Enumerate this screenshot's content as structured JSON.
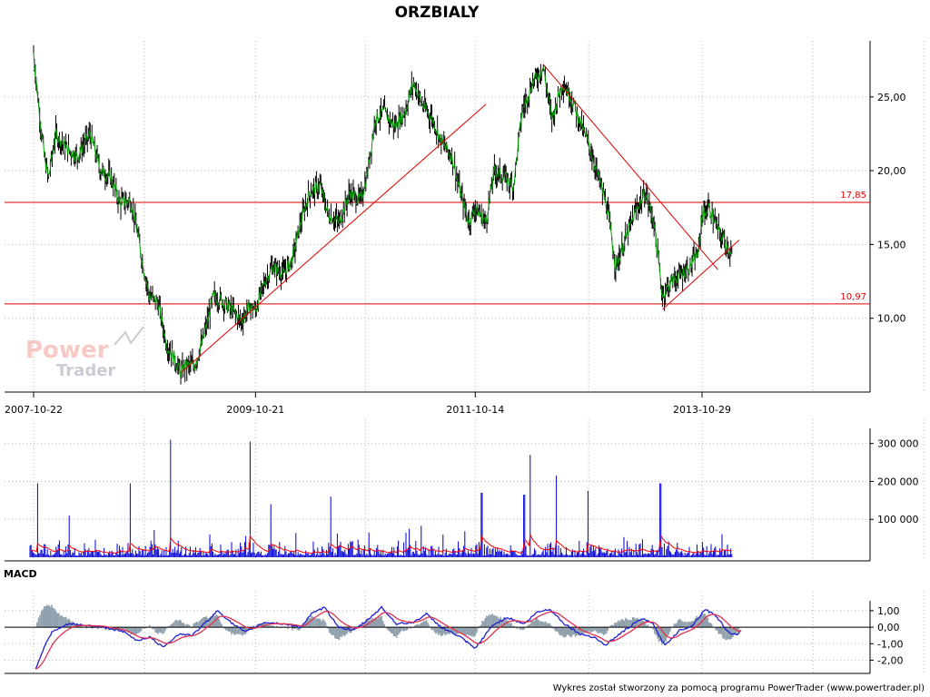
{
  "chart_data": [
    {
      "panel": "price",
      "type": "ohlc",
      "title": "ORZBIALY",
      "x_tick_labels": [
        "2007-10-22",
        "2009-10-21",
        "2011-10-14",
        "2013-10-29"
      ],
      "y_tick_labels": [
        "10,00",
        "15,00",
        "20,00",
        "25,00"
      ],
      "y_ticks": [
        10,
        15,
        20,
        25
      ],
      "ylim": [
        5,
        28.8
      ],
      "colors": {
        "bar": "#000000",
        "close_line": "#00a000",
        "levels": "#e00000",
        "trendlines": "#e00000"
      },
      "grid": true,
      "series": [
        {
          "name": "close",
          "note": "approximate close path read from the chart, dates paired with prices",
          "points": [
            [
              "2007-10-22",
              28.0
            ],
            [
              "2007-11-05",
              25.0
            ],
            [
              "2007-11-26",
              21.0
            ],
            [
              "2007-12-10",
              19.5
            ],
            [
              "2008-01-03",
              22.5
            ],
            [
              "2008-02-08",
              21.5
            ],
            [
              "2008-03-14",
              21.0
            ],
            [
              "2008-04-25",
              22.5
            ],
            [
              "2008-05-30",
              20.0
            ],
            [
              "2008-07-04",
              19.5
            ],
            [
              "2008-08-01",
              17.8
            ],
            [
              "2008-09-05",
              18.0
            ],
            [
              "2008-09-26",
              16.0
            ],
            [
              "2008-10-17",
              13.5
            ],
            [
              "2008-11-07",
              11.5
            ],
            [
              "2008-12-05",
              11.0
            ],
            [
              "2009-01-02",
              8.2
            ],
            [
              "2009-01-23",
              7.5
            ],
            [
              "2009-02-17",
              6.3
            ],
            [
              "2009-03-06",
              6.8
            ],
            [
              "2009-04-03",
              6.8
            ],
            [
              "2009-05-01",
              8.5
            ],
            [
              "2009-06-05",
              11.5
            ],
            [
              "2009-07-03",
              11.2
            ],
            [
              "2009-08-07",
              10.5
            ],
            [
              "2009-09-04",
              9.8
            ],
            [
              "2009-10-02",
              10.8
            ],
            [
              "2009-10-21",
              10.5
            ],
            [
              "2009-11-20",
              12.5
            ],
            [
              "2009-12-18",
              13.5
            ],
            [
              "2010-01-22",
              13.0
            ],
            [
              "2010-02-19",
              14.0
            ],
            [
              "2010-03-19",
              16.5
            ],
            [
              "2010-04-16",
              18.5
            ],
            [
              "2010-05-21",
              19.0
            ],
            [
              "2010-06-18",
              17.0
            ],
            [
              "2010-07-23",
              16.5
            ],
            [
              "2010-08-27",
              18.5
            ],
            [
              "2010-10-01",
              18.0
            ],
            [
              "2010-10-22",
              19.5
            ],
            [
              "2010-11-19",
              23.5
            ],
            [
              "2010-12-17",
              24.0
            ],
            [
              "2011-01-21",
              23.0
            ],
            [
              "2011-02-25",
              24.0
            ],
            [
              "2011-03-25",
              26.0
            ],
            [
              "2011-04-22",
              24.5
            ],
            [
              "2011-05-27",
              23.5
            ],
            [
              "2011-06-24",
              22.0
            ],
            [
              "2011-07-29",
              21.0
            ],
            [
              "2011-08-26",
              18.5
            ],
            [
              "2011-09-23",
              16.5
            ],
            [
              "2011-10-14",
              17.5
            ],
            [
              "2011-11-18",
              16.5
            ],
            [
              "2011-12-16",
              20.0
            ],
            [
              "2012-01-20",
              19.5
            ],
            [
              "2012-02-17",
              19.0
            ],
            [
              "2012-03-16",
              24.0
            ],
            [
              "2012-04-20",
              26.0
            ],
            [
              "2012-05-25",
              27.0
            ],
            [
              "2012-06-22",
              23.5
            ],
            [
              "2012-07-27",
              26.0
            ],
            [
              "2012-08-24",
              25.0
            ],
            [
              "2012-09-28",
              23.0
            ],
            [
              "2012-10-26",
              21.5
            ],
            [
              "2012-11-23",
              19.5
            ],
            [
              "2012-12-21",
              17.5
            ],
            [
              "2013-01-18",
              13.5
            ],
            [
              "2013-02-22",
              15.5
            ],
            [
              "2013-03-29",
              17.5
            ],
            [
              "2013-04-26",
              18.5
            ],
            [
              "2013-05-24",
              16.5
            ],
            [
              "2013-06-21",
              11.5
            ],
            [
              "2013-07-19",
              12.5
            ],
            [
              "2013-08-23",
              13.0
            ],
            [
              "2013-09-20",
              13.5
            ],
            [
              "2013-10-18",
              14.5
            ],
            [
              "2013-10-29",
              17.0
            ],
            [
              "2013-11-22",
              17.5
            ],
            [
              "2013-12-20",
              16.0
            ],
            [
              "2014-01-17",
              15.0
            ],
            [
              "2014-02-07",
              14.2
            ]
          ]
        }
      ],
      "levels": [
        {
          "value": 17.85,
          "label": "17,85"
        },
        {
          "value": 10.97,
          "label": "10,97"
        }
      ],
      "trendlines": [
        {
          "from": [
            "2009-02-17",
            6.3
          ],
          "to": [
            "2011-11-18",
            24.5
          ]
        },
        {
          "from": [
            "2012-05-25",
            27.2
          ],
          "to": [
            "2013-12-20",
            13.3
          ]
        },
        {
          "from": [
            "2013-06-21",
            10.6
          ],
          "to": [
            "2014-02-28",
            15.3
          ]
        }
      ]
    },
    {
      "panel": "volume",
      "type": "bar",
      "y_tick_labels": [
        "100 000",
        "200 000",
        "300 000"
      ],
      "y_ticks": [
        100000,
        200000,
        300000
      ],
      "ylim": [
        0,
        340000
      ],
      "colors": {
        "bars": "#0000d8",
        "average": "#ff0000"
      },
      "grid": true,
      "peaks": [
        [
          "2007-11-05",
          195000
        ],
        [
          "2008-02-15",
          110000
        ],
        [
          "2008-09-05",
          195000
        ],
        [
          "2009-01-16",
          310000
        ],
        [
          "2009-10-02",
          305000
        ],
        [
          "2009-12-11",
          140000
        ],
        [
          "2010-06-25",
          160000
        ],
        [
          "2011-11-04",
          170000
        ],
        [
          "2012-03-23",
          165000
        ],
        [
          "2012-04-13",
          270000
        ],
        [
          "2012-07-06",
          215000
        ],
        [
          "2012-10-19",
          175000
        ],
        [
          "2013-06-14",
          195000
        ]
      ],
      "series": [
        {
          "name": "average",
          "values": []
        }
      ]
    },
    {
      "panel": "macd",
      "type": "line",
      "label": "MACD",
      "y_tick_labels": [
        "-2,00",
        "-1,00",
        "0,00",
        "1,00"
      ],
      "y_ticks": [
        -2,
        -1,
        0,
        1
      ],
      "ylim": [
        -2.8,
        1.6
      ],
      "colors": {
        "macd": "#2020d0",
        "signal": "#e03050",
        "histogram": "#90a0ac"
      },
      "grid": true,
      "macd_points": [
        [
          "2007-10-29",
          -2.5
        ],
        [
          "2007-11-26",
          -1.2
        ],
        [
          "2007-12-21",
          -0.3
        ],
        [
          "2008-02-15",
          0.2
        ],
        [
          "2008-04-18",
          0.1
        ],
        [
          "2008-06-13",
          0.0
        ],
        [
          "2008-08-15",
          -0.3
        ],
        [
          "2008-09-26",
          -0.8
        ],
        [
          "2008-11-07",
          -0.6
        ],
        [
          "2008-12-19",
          -1.2
        ],
        [
          "2009-02-13",
          -0.4
        ],
        [
          "2009-03-27",
          -0.5
        ],
        [
          "2009-05-22",
          0.5
        ],
        [
          "2009-06-19",
          1.0
        ],
        [
          "2009-08-07",
          0.2
        ],
        [
          "2009-09-18",
          -0.3
        ],
        [
          "2009-11-20",
          0.3
        ],
        [
          "2010-01-22",
          0.2
        ],
        [
          "2010-03-19",
          0.0
        ],
        [
          "2010-04-23",
          0.8
        ],
        [
          "2010-06-04",
          1.2
        ],
        [
          "2010-07-23",
          0.0
        ],
        [
          "2010-09-10",
          -0.2
        ],
        [
          "2010-10-22",
          0.4
        ],
        [
          "2010-12-10",
          1.2
        ],
        [
          "2011-01-28",
          0.2
        ],
        [
          "2011-03-25",
          0.3
        ],
        [
          "2011-05-06",
          0.8
        ],
        [
          "2011-06-24",
          0.0
        ],
        [
          "2011-08-26",
          -0.6
        ],
        [
          "2011-10-14",
          -1.3
        ],
        [
          "2011-12-09",
          0.1
        ],
        [
          "2012-01-27",
          0.6
        ],
        [
          "2012-03-23",
          0.2
        ],
        [
          "2012-05-04",
          0.9
        ],
        [
          "2012-06-15",
          1.1
        ],
        [
          "2012-08-03",
          0.2
        ],
        [
          "2012-09-21",
          -0.4
        ],
        [
          "2012-11-09",
          -0.6
        ],
        [
          "2012-12-14",
          -1.1
        ],
        [
          "2013-02-15",
          -0.2
        ],
        [
          "2013-04-12",
          0.5
        ],
        [
          "2013-05-17",
          0.3
        ],
        [
          "2013-06-28",
          -1.1
        ],
        [
          "2013-08-16",
          -0.2
        ],
        [
          "2013-09-27",
          0.1
        ],
        [
          "2013-11-08",
          1.1
        ],
        [
          "2013-12-13",
          0.7
        ],
        [
          "2014-01-24",
          -0.3
        ],
        [
          "2014-02-21",
          -0.5
        ],
        [
          "2014-03-07",
          -0.2
        ]
      ]
    }
  ],
  "watermark": {
    "line1": "Power",
    "line2": "Trader"
  },
  "footer": "Wykres został stworzony za pomocą programu PowerTrader (www.powertrader.pl)"
}
